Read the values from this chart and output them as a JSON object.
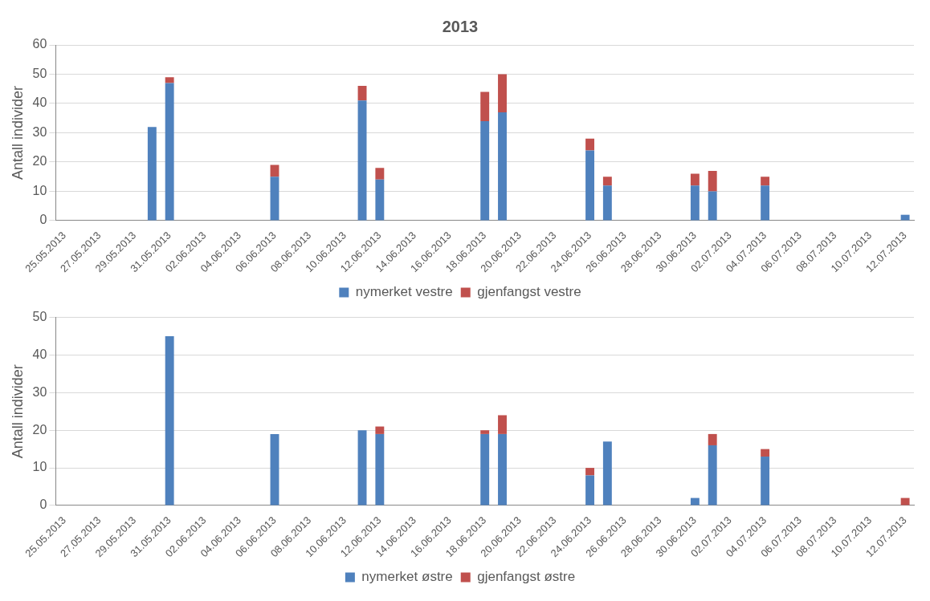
{
  "chart_data": [
    {
      "type": "bar",
      "title": "2013",
      "ylabel": "Antall individer",
      "stacked": true,
      "grid": "y",
      "legend": "bottom",
      "categories": [
        "25.05.2013",
        null,
        "27.05.2013",
        null,
        "29.05.2013",
        null,
        "31.05.2013",
        null,
        "02.06.2013",
        null,
        "04.06.2013",
        null,
        "06.06.2013",
        null,
        "08.06.2013",
        null,
        "10.06.2013",
        null,
        "12.06.2013",
        null,
        "14.06.2013",
        null,
        "16.06.2013",
        null,
        "18.06.2013",
        null,
        "20.06.2013",
        null,
        "22.06.2013",
        null,
        "24.06.2013",
        null,
        "26.06.2013",
        null,
        "28.06.2013",
        null,
        "30.06.2013",
        null,
        "02.07.2013",
        null,
        "04.07.2013",
        null,
        "06.07.2013",
        null,
        "08.07.2013",
        null,
        "10.07.2013",
        null,
        "12.07.2013"
      ],
      "ylim": [
        0,
        60
      ],
      "yticks": [
        0,
        10,
        20,
        30,
        40,
        50,
        60
      ],
      "series": [
        {
          "name": "nymerket vestre",
          "color": "#4f81bd",
          "values": [
            0,
            0,
            0,
            0,
            0,
            32,
            47,
            0,
            0,
            0,
            0,
            0,
            15,
            0,
            0,
            0,
            0,
            41,
            14,
            0,
            0,
            0,
            0,
            0,
            34,
            37,
            0,
            0,
            0,
            0,
            24,
            12,
            0,
            0,
            0,
            0,
            12,
            10,
            0,
            0,
            12,
            0,
            0,
            0,
            0,
            0,
            0,
            0,
            2
          ]
        },
        {
          "name": "gjenfangst vestre",
          "color": "#c0504d",
          "values": [
            0,
            0,
            0,
            0,
            0,
            0,
            2,
            0,
            0,
            0,
            0,
            0,
            4,
            0,
            0,
            0,
            0,
            5,
            4,
            0,
            0,
            0,
            0,
            0,
            10,
            13,
            0,
            0,
            0,
            0,
            4,
            3,
            0,
            0,
            0,
            0,
            4,
            7,
            0,
            0,
            3,
            0,
            0,
            0,
            0,
            0,
            0,
            0,
            0
          ]
        }
      ]
    },
    {
      "type": "bar",
      "ylabel": "Antall individer",
      "stacked": true,
      "grid": "y",
      "legend": "bottom",
      "categories": [
        "25.05.2013",
        null,
        "27.05.2013",
        null,
        "29.05.2013",
        null,
        "31.05.2013",
        null,
        "02.06.2013",
        null,
        "04.06.2013",
        null,
        "06.06.2013",
        null,
        "08.06.2013",
        null,
        "10.06.2013",
        null,
        "12.06.2013",
        null,
        "14.06.2013",
        null,
        "16.06.2013",
        null,
        "18.06.2013",
        null,
        "20.06.2013",
        null,
        "22.06.2013",
        null,
        "24.06.2013",
        null,
        "26.06.2013",
        null,
        "28.06.2013",
        null,
        "30.06.2013",
        null,
        "02.07.2013",
        null,
        "04.07.2013",
        null,
        "06.07.2013",
        null,
        "08.07.2013",
        null,
        "10.07.2013",
        null,
        "12.07.2013"
      ],
      "ylim": [
        0,
        50
      ],
      "yticks": [
        0,
        10,
        20,
        30,
        40,
        50
      ],
      "series": [
        {
          "name": "nymerket østre",
          "color": "#4f81bd",
          "values": [
            0,
            0,
            0,
            0,
            0,
            0,
            45,
            0,
            0,
            0,
            0,
            0,
            19,
            0,
            0,
            0,
            0,
            20,
            19,
            0,
            0,
            0,
            0,
            0,
            19,
            19,
            0,
            0,
            0,
            0,
            8,
            17,
            0,
            0,
            0,
            0,
            2,
            16,
            0,
            0,
            13,
            0,
            0,
            0,
            0,
            0,
            0,
            0,
            0
          ]
        },
        {
          "name": "gjenfangst østre",
          "color": "#c0504d",
          "values": [
            0,
            0,
            0,
            0,
            0,
            0,
            0,
            0,
            0,
            0,
            0,
            0,
            0,
            0,
            0,
            0,
            0,
            0,
            2,
            0,
            0,
            0,
            0,
            0,
            1,
            5,
            0,
            0,
            0,
            0,
            2,
            0,
            0,
            0,
            0,
            0,
            0,
            3,
            0,
            0,
            2,
            0,
            0,
            0,
            0,
            0,
            0,
            0,
            2
          ]
        }
      ]
    }
  ]
}
